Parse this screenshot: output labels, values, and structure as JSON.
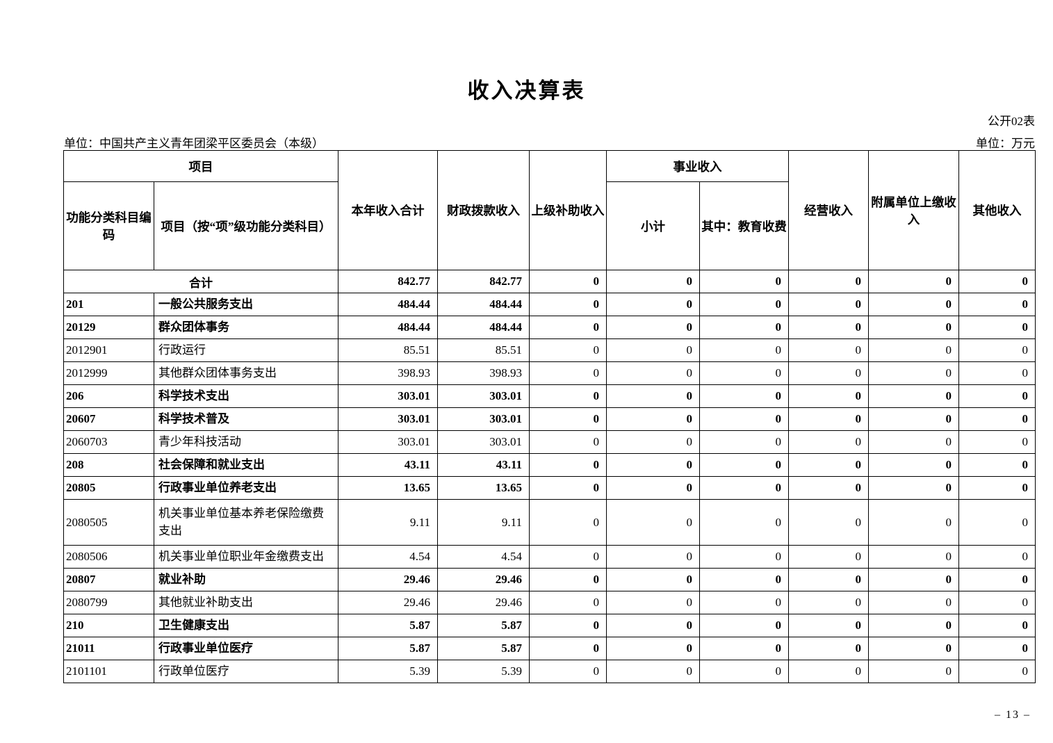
{
  "page": {
    "title": "收入决算表",
    "doc_label": "公开02表",
    "org": "单位：中国共产主义青年团梁平区委员会（本级）",
    "unit": "单位：万元",
    "page_number": "– 13 –"
  },
  "table": {
    "headers": {
      "project_group": "项目",
      "code": "功能分类科目编码",
      "project_item": "项目（按“项”级功能分类科目）",
      "year_total": "本年收入合计",
      "fiscal_grant": "财政拨款收入",
      "superior_subsidy": "上级补助收入",
      "business_income_group": "事业收入",
      "subtotal": "小计",
      "education_fee": "其中：教育收费",
      "operating_income": "经营收入",
      "affiliated_income": "附属单位上缴收入",
      "other_income": "其他收入"
    },
    "rows": [
      {
        "code": "",
        "name": "合计",
        "merged": true,
        "bold": true,
        "values": [
          "842.77",
          "842.77",
          "0",
          "0",
          "0",
          "0",
          "0",
          "0"
        ]
      },
      {
        "code": "201",
        "name": "一般公共服务支出",
        "bold": true,
        "values": [
          "484.44",
          "484.44",
          "0",
          "0",
          "0",
          "0",
          "0",
          "0"
        ]
      },
      {
        "code": "20129",
        "name": "群众团体事务",
        "bold": true,
        "values": [
          "484.44",
          "484.44",
          "0",
          "0",
          "0",
          "0",
          "0",
          "0"
        ]
      },
      {
        "code": "2012901",
        "name": "行政运行",
        "bold": false,
        "values": [
          "85.51",
          "85.51",
          "0",
          "0",
          "0",
          "0",
          "0",
          "0"
        ]
      },
      {
        "code": "2012999",
        "name": "其他群众团体事务支出",
        "bold": false,
        "values": [
          "398.93",
          "398.93",
          "0",
          "0",
          "0",
          "0",
          "0",
          "0"
        ]
      },
      {
        "code": "206",
        "name": "科学技术支出",
        "bold": true,
        "values": [
          "303.01",
          "303.01",
          "0",
          "0",
          "0",
          "0",
          "0",
          "0"
        ]
      },
      {
        "code": "20607",
        "name": "科学技术普及",
        "bold": true,
        "values": [
          "303.01",
          "303.01",
          "0",
          "0",
          "0",
          "0",
          "0",
          "0"
        ]
      },
      {
        "code": "2060703",
        "name": "青少年科技活动",
        "bold": false,
        "values": [
          "303.01",
          "303.01",
          "0",
          "0",
          "0",
          "0",
          "0",
          "0"
        ]
      },
      {
        "code": "208",
        "name": "社会保障和就业支出",
        "bold": true,
        "values": [
          "43.11",
          "43.11",
          "0",
          "0",
          "0",
          "0",
          "0",
          "0"
        ]
      },
      {
        "code": "20805",
        "name": "行政事业单位养老支出",
        "bold": true,
        "values": [
          "13.65",
          "13.65",
          "0",
          "0",
          "0",
          "0",
          "0",
          "0"
        ]
      },
      {
        "code": "2080505",
        "name": "机关事业单位基本养老保险缴费支出",
        "bold": false,
        "tall": true,
        "values": [
          "9.11",
          "9.11",
          "0",
          "0",
          "0",
          "0",
          "0",
          "0"
        ]
      },
      {
        "code": "2080506",
        "name": "机关事业单位职业年金缴费支出",
        "bold": false,
        "values": [
          "4.54",
          "4.54",
          "0",
          "0",
          "0",
          "0",
          "0",
          "0"
        ]
      },
      {
        "code": "20807",
        "name": "就业补助",
        "bold": true,
        "values": [
          "29.46",
          "29.46",
          "0",
          "0",
          "0",
          "0",
          "0",
          "0"
        ]
      },
      {
        "code": "2080799",
        "name": "其他就业补助支出",
        "bold": false,
        "values": [
          "29.46",
          "29.46",
          "0",
          "0",
          "0",
          "0",
          "0",
          "0"
        ]
      },
      {
        "code": "210",
        "name": "卫生健康支出",
        "bold": true,
        "values": [
          "5.87",
          "5.87",
          "0",
          "0",
          "0",
          "0",
          "0",
          "0"
        ]
      },
      {
        "code": "21011",
        "name": "行政事业单位医疗",
        "bold": true,
        "values": [
          "5.87",
          "5.87",
          "0",
          "0",
          "0",
          "0",
          "0",
          "0"
        ]
      },
      {
        "code": "2101101",
        "name": "行政单位医疗",
        "bold": false,
        "values": [
          "5.39",
          "5.39",
          "0",
          "0",
          "0",
          "0",
          "0",
          "0"
        ]
      }
    ]
  }
}
